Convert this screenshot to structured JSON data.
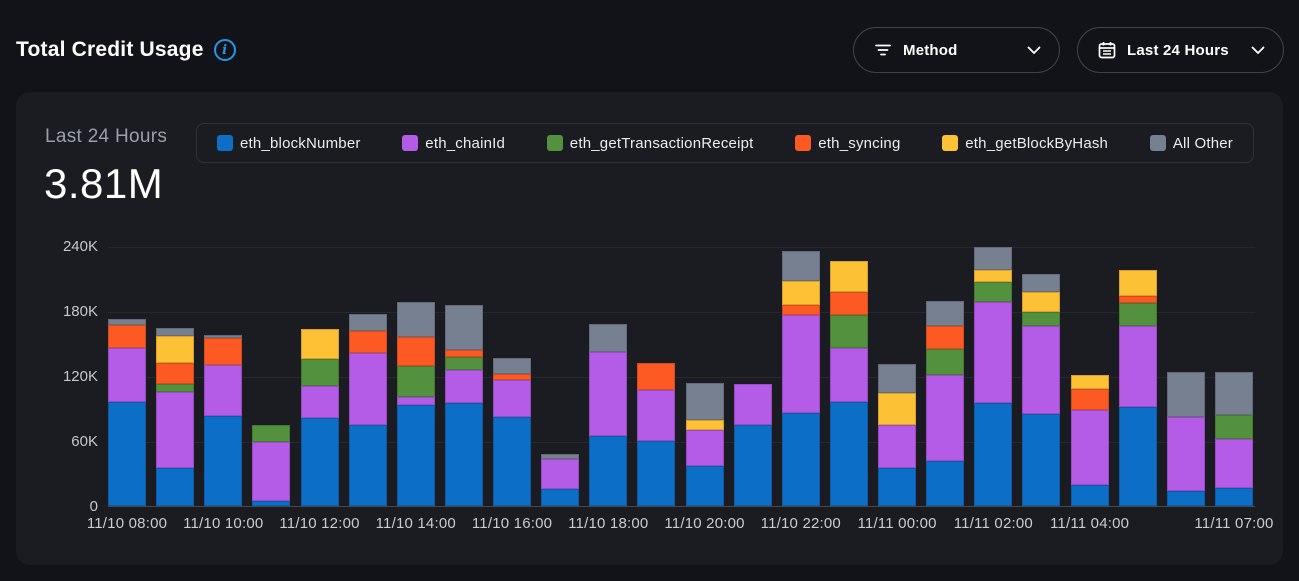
{
  "header": {
    "title": "Total Credit Usage",
    "filters": [
      {
        "id": "method",
        "icon": "filter-icon",
        "label": "Method"
      },
      {
        "id": "range",
        "icon": "calendar-icon",
        "label": "Last 24 Hours"
      }
    ]
  },
  "summary": {
    "period_label": "Last 24 Hours",
    "total_value": "3.81M"
  },
  "colors": {
    "accent_info": "#2397e8",
    "page_bg": "#121318",
    "panel_bg": "#1a1c21"
  },
  "chart_data": {
    "type": "bar",
    "subtype": "stacked",
    "title": "Total Credit Usage",
    "xlabel": "",
    "ylabel": "",
    "values_unit": "thousands of credits",
    "ylim": [
      0,
      240
    ],
    "grid": true,
    "legend_position": "top",
    "y_ticks": [
      {
        "label": "240K",
        "value": 240
      },
      {
        "label": "180K",
        "value": 180
      },
      {
        "label": "120K",
        "value": 120
      },
      {
        "label": "60K",
        "value": 60
      },
      {
        "label": "0",
        "value": 0
      }
    ],
    "categories": [
      "11/10 08:00",
      "11/10 09:00",
      "11/10 10:00",
      "11/10 11:00",
      "11/10 12:00",
      "11/10 13:00",
      "11/10 14:00",
      "11/10 15:00",
      "11/10 16:00",
      "11/10 17:00",
      "11/10 18:00",
      "11/10 19:00",
      "11/10 20:00",
      "11/10 21:00",
      "11/10 22:00",
      "11/10 23:00",
      "11/11 00:00",
      "11/11 01:00",
      "11/11 02:00",
      "11/11 03:00",
      "11/11 04:00",
      "11/11 05:00",
      "11/11 06:00",
      "11/11 07:00"
    ],
    "x_ticks": [
      {
        "index": 0,
        "label": "11/10 08:00"
      },
      {
        "index": 2,
        "label": "11/10 10:00"
      },
      {
        "index": 4,
        "label": "11/10 12:00"
      },
      {
        "index": 6,
        "label": "11/10 14:00"
      },
      {
        "index": 8,
        "label": "11/10 16:00"
      },
      {
        "index": 10,
        "label": "11/10 18:00"
      },
      {
        "index": 12,
        "label": "11/10 20:00"
      },
      {
        "index": 14,
        "label": "11/10 22:00"
      },
      {
        "index": 16,
        "label": "11/11 00:00"
      },
      {
        "index": 18,
        "label": "11/11 02:00"
      },
      {
        "index": 20,
        "label": "11/11 04:00"
      },
      {
        "index": 23,
        "label": "11/11 07:00"
      }
    ],
    "series": [
      {
        "name": "eth_blockNumber",
        "color": "#0d6ec7",
        "values": [
          96,
          35,
          83,
          5,
          81,
          75,
          93,
          95,
          82,
          16,
          65,
          60,
          37,
          75,
          86,
          96,
          35,
          42,
          95,
          85,
          19,
          91,
          14,
          17
        ]
      },
      {
        "name": "eth_chainId",
        "color": "#b45be8",
        "values": [
          50,
          70,
          47,
          54,
          30,
          66,
          8,
          31,
          34,
          27,
          77,
          47,
          33,
          38,
          90,
          50,
          40,
          79,
          93,
          81,
          70,
          75,
          68,
          45
        ]
      },
      {
        "name": "eth_getTransactionReceipt",
        "color": "#53913e",
        "values": [
          0,
          8,
          0,
          16,
          25,
          0,
          28,
          12,
          0,
          0,
          0,
          0,
          0,
          0,
          0,
          30,
          0,
          24,
          19,
          13,
          0,
          21,
          0,
          22
        ]
      },
      {
        "name": "eth_syncing",
        "color": "#fd5a23",
        "values": [
          21,
          19,
          25,
          0,
          0,
          21,
          27,
          6,
          6,
          0,
          0,
          25,
          0,
          0,
          10,
          22,
          0,
          21,
          0,
          0,
          19,
          7,
          0,
          0
        ]
      },
      {
        "name": "eth_getBlockByHash",
        "color": "#fdc135",
        "values": [
          0,
          25,
          0,
          0,
          27,
          0,
          0,
          0,
          0,
          0,
          0,
          0,
          9,
          0,
          22,
          28,
          29,
          0,
          11,
          19,
          13,
          24,
          0,
          0
        ]
      },
      {
        "name": "All Other",
        "color": "#778090",
        "values": [
          6,
          7,
          3,
          0,
          0,
          15,
          32,
          42,
          15,
          5,
          26,
          0,
          35,
          0,
          27,
          0,
          27,
          23,
          21,
          16,
          0,
          0,
          42,
          40
        ]
      }
    ]
  }
}
